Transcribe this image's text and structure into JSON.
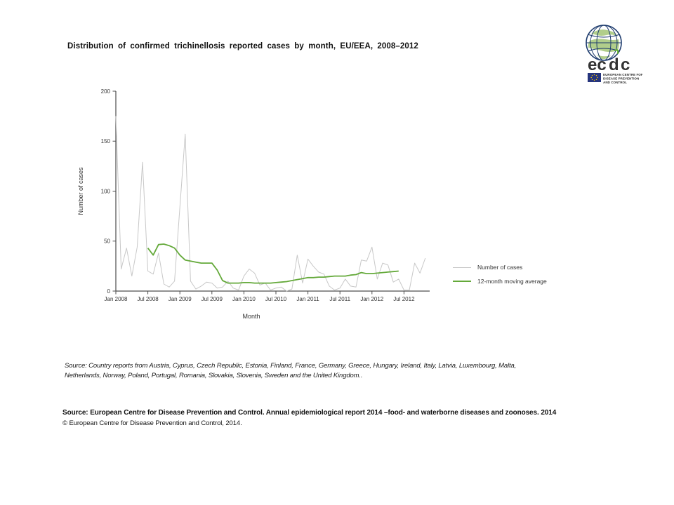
{
  "title": {
    "text": "Distribution of confirmed trichinellosis reported cases by month, EU/EEA, 2008–2012"
  },
  "logo": {
    "wordmark_left": "ec",
    "wordmark_d": "d",
    "wordmark_right": "c",
    "org_line1": "EUROPEAN CENTRE FOR",
    "org_line2": "DISEASE PREVENTION",
    "org_line3": "AND CONTROL",
    "navy": "#1e3c6e",
    "green": "#65b32e"
  },
  "chart_data": {
    "type": "line",
    "title": "Distribution of confirmed trichinellosis reported cases by month, EU/EEA, 2008–2012",
    "xlabel": "Month",
    "ylabel": "Number of cases",
    "ylim": [
      0,
      200
    ],
    "yticks": [
      0,
      50,
      100,
      150,
      200
    ],
    "xticks": [
      "Jan 2008",
      "Jul 2008",
      "Jan 2009",
      "Jul 2009",
      "Jan 2010",
      "Jul 2010",
      "Jan 2011",
      "Jul 2011",
      "Jan 2012",
      "Jul 2012"
    ],
    "start_month": "Jan 2008",
    "end_month": "Nov 2012",
    "frequency": "monthly",
    "grid": false,
    "legend_position": "right",
    "series": [
      {
        "name": "Number of cases",
        "color": "#c8c8c8",
        "width": 1,
        "start_month_index": 0,
        "values": [
          175,
          22,
          43,
          15,
          44,
          129,
          20,
          17,
          38,
          7,
          4,
          10,
          84,
          157,
          10,
          2,
          5,
          9,
          8,
          3,
          4,
          10,
          3,
          1,
          15,
          22,
          18,
          6,
          8,
          1,
          3,
          4,
          0,
          2,
          36,
          8,
          32,
          25,
          19,
          17,
          5,
          1,
          3,
          12,
          5,
          4,
          31,
          30,
          44,
          12,
          28,
          26,
          9,
          12,
          1,
          1,
          28,
          18,
          33
        ]
      },
      {
        "name": "12-month moving average",
        "color": "#64a93a",
        "width": 1.8,
        "start_month_index": 6,
        "values": [
          43,
          36,
          46.5,
          47,
          45.5,
          43,
          36,
          31,
          30,
          29,
          28,
          28,
          28,
          21,
          10.5,
          8,
          8,
          8,
          8.5,
          8.5,
          8,
          8,
          8,
          8,
          8.5,
          9,
          9.5,
          10.5,
          11.5,
          12.5,
          13.5,
          13.5,
          14,
          14,
          14.5,
          15,
          15,
          15,
          16,
          16.5,
          18.5,
          17.5,
          17.5,
          18,
          18.5,
          19,
          19.5,
          20
        ]
      }
    ]
  },
  "legend": {
    "items": [
      {
        "label": "Number of cases",
        "color": "#c8c8c8",
        "thickness": 1.5
      },
      {
        "label": "12-month moving average",
        "color": "#64a93a",
        "thickness": 2
      }
    ]
  },
  "source_note": {
    "text": "Source: Country reports from Austria, Cyprus, Czech Republic, Estonia, Finland, France, Germany, Greece, Hungary, Ireland, Italy, Latvia, Luxembourg, Malta, Netherlands, Norway, Poland, Portugal, Romania, Slovakia, Slovenia, Sweden and the United Kingdom.."
  },
  "footer": {
    "line1": "Source: European Centre for Disease Prevention and Control.  Annual epidemiological report 2014 –food- and waterborne diseases and zoonoses. 2014",
    "copyright": "© European Centre for Disease Prevention and Control, 2014."
  }
}
